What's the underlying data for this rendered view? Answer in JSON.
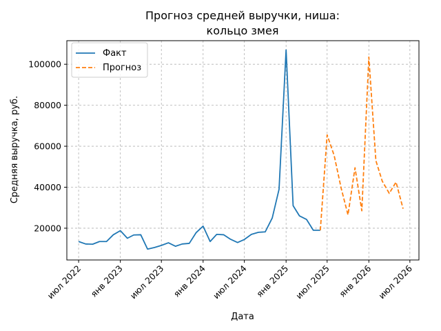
{
  "chart_data": {
    "type": "line",
    "title_lines": [
      "Прогноз средней выручки, ниша:",
      "кольцо змея"
    ],
    "xlabel": "Дата",
    "ylabel": "Средняя выручка, руб.",
    "x_tick_labels": [
      {
        "date": "2022-07-01",
        "label": "июл 2022"
      },
      {
        "date": "2023-01-01",
        "label": "янв 2023"
      },
      {
        "date": "2023-07-01",
        "label": "июл 2023"
      },
      {
        "date": "2024-01-01",
        "label": "янв 2024"
      },
      {
        "date": "2024-07-01",
        "label": "июл 2024"
      },
      {
        "date": "2025-01-01",
        "label": "янв 2025"
      },
      {
        "date": "2025-07-01",
        "label": "июл 2025"
      },
      {
        "date": "2026-01-01",
        "label": "янв 2026"
      },
      {
        "date": "2026-07-01",
        "label": "июл 2026"
      }
    ],
    "y_ticks": [
      20000,
      40000,
      60000,
      80000,
      100000
    ],
    "y_tick_labels": [
      "20000",
      "40000",
      "60000",
      "80000",
      "100000"
    ],
    "xlim": [
      "2022-05-10",
      "2026-08-10"
    ],
    "ylim": [
      4500,
      111500
    ],
    "grid": true,
    "legend_position": "top-left",
    "series": [
      {
        "name": "Факт",
        "color": "#1f77b4",
        "style": "solid",
        "points": [
          {
            "x": "2022-07-01",
            "y": 13500
          },
          {
            "x": "2022-08-01",
            "y": 12300
          },
          {
            "x": "2022-09-01",
            "y": 12200
          },
          {
            "x": "2022-10-01",
            "y": 13500
          },
          {
            "x": "2022-11-01",
            "y": 13500
          },
          {
            "x": "2022-12-01",
            "y": 16800
          },
          {
            "x": "2023-01-01",
            "y": 18800
          },
          {
            "x": "2023-02-01",
            "y": 15100
          },
          {
            "x": "2023-03-01",
            "y": 16700
          },
          {
            "x": "2023-04-01",
            "y": 16800
          },
          {
            "x": "2023-05-01",
            "y": 9800
          },
          {
            "x": "2023-06-01",
            "y": 10600
          },
          {
            "x": "2023-07-01",
            "y": 11600
          },
          {
            "x": "2023-08-01",
            "y": 12900
          },
          {
            "x": "2023-09-01",
            "y": 11200
          },
          {
            "x": "2023-10-01",
            "y": 12300
          },
          {
            "x": "2023-11-01",
            "y": 12600
          },
          {
            "x": "2023-12-01",
            "y": 17800
          },
          {
            "x": "2024-01-01",
            "y": 21000
          },
          {
            "x": "2024-02-01",
            "y": 13500
          },
          {
            "x": "2024-03-01",
            "y": 17000
          },
          {
            "x": "2024-04-01",
            "y": 16800
          },
          {
            "x": "2024-05-01",
            "y": 14600
          },
          {
            "x": "2024-06-01",
            "y": 13000
          },
          {
            "x": "2024-07-01",
            "y": 14500
          },
          {
            "x": "2024-08-01",
            "y": 17000
          },
          {
            "x": "2024-09-01",
            "y": 18000
          },
          {
            "x": "2024-10-01",
            "y": 18200
          },
          {
            "x": "2024-11-01",
            "y": 25000
          },
          {
            "x": "2024-12-01",
            "y": 39000
          },
          {
            "x": "2025-01-01",
            "y": 107000
          },
          {
            "x": "2025-02-01",
            "y": 31000
          },
          {
            "x": "2025-03-01",
            "y": 26000
          },
          {
            "x": "2025-04-01",
            "y": 24300
          },
          {
            "x": "2025-05-01",
            "y": 19000
          },
          {
            "x": "2025-06-01",
            "y": 19000
          }
        ]
      },
      {
        "name": "Прогноз",
        "color": "#ff7f0e",
        "style": "dashed",
        "points": [
          {
            "x": "2025-06-01",
            "y": 19000
          },
          {
            "x": "2025-07-01",
            "y": 65500
          },
          {
            "x": "2025-08-01",
            "y": 55500
          },
          {
            "x": "2025-09-01",
            "y": 39500
          },
          {
            "x": "2025-10-01",
            "y": 26500
          },
          {
            "x": "2025-11-01",
            "y": 49500
          },
          {
            "x": "2025-12-01",
            "y": 28500
          },
          {
            "x": "2026-01-01",
            "y": 103500
          },
          {
            "x": "2026-02-01",
            "y": 53000
          },
          {
            "x": "2026-03-01",
            "y": 43000
          },
          {
            "x": "2026-04-01",
            "y": 37000
          },
          {
            "x": "2026-05-01",
            "y": 42500
          },
          {
            "x": "2026-06-01",
            "y": 29500
          }
        ]
      }
    ]
  }
}
